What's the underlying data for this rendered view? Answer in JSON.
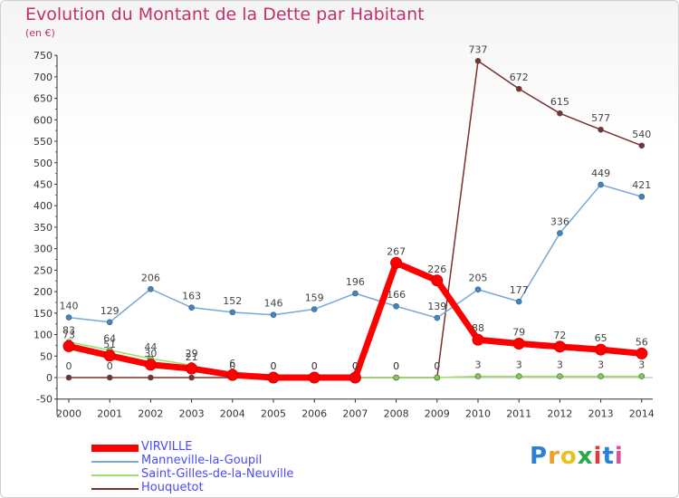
{
  "title": "Evolution du Montant de la Dette par Habitant",
  "unit": "(en €)",
  "logo": "Proxiti",
  "chart_data": {
    "type": "line",
    "title": "Evolution du Montant de la Dette par Habitant",
    "ylabel": "(en €)",
    "x": [
      "2000",
      "2001",
      "2002",
      "2003",
      "2004",
      "2005",
      "2006",
      "2007",
      "2008",
      "2009",
      "2010",
      "2011",
      "2012",
      "2013",
      "2014"
    ],
    "ylim": [
      -50,
      750
    ],
    "yticks": [
      -50,
      0,
      50,
      100,
      150,
      200,
      250,
      300,
      350,
      400,
      450,
      500,
      550,
      600,
      650,
      700,
      750
    ],
    "grid": false,
    "legend_position": "bottom-left",
    "series": [
      {
        "name": "VIRVILLE",
        "color": "#ff0000",
        "values": [
          73,
          51,
          30,
          21,
          6,
          0,
          0,
          0,
          267,
          226,
          88,
          79,
          72,
          65,
          56
        ],
        "labels": [
          "73",
          "51",
          "30",
          "21",
          "6",
          "0",
          "0",
          "0",
          "267",
          "226",
          "88",
          "79",
          "72",
          "65",
          "56"
        ]
      },
      {
        "name": "Manneville-la-Goupil",
        "color": "#7aa7d6",
        "values": [
          140,
          129,
          206,
          163,
          152,
          146,
          159,
          196,
          166,
          139,
          205,
          177,
          336,
          449,
          421
        ],
        "labels": [
          "140",
          "129",
          "206",
          "163",
          "152",
          "146",
          "159",
          "196",
          "166",
          "139",
          "205",
          "177",
          "336",
          "449",
          "421"
        ]
      },
      {
        "name": "Saint-Gilles-de-la-Neuville",
        "color": "#99e066",
        "values": [
          83,
          64,
          44,
          29,
          0,
          0,
          0,
          0,
          0,
          0,
          3,
          3,
          3,
          3,
          3
        ],
        "labels": [
          "83",
          "64",
          "44",
          "29",
          "0",
          "0",
          "0",
          "0",
          "0",
          "0",
          "3",
          "3",
          "3",
          "3",
          "3"
        ]
      },
      {
        "name": "Houquetot",
        "color": "#7a3030",
        "values": [
          0,
          0,
          0,
          0,
          0,
          0,
          0,
          0,
          0,
          0,
          737,
          672,
          615,
          577,
          540
        ],
        "labels": [
          "0",
          "0",
          "",
          "",
          "",
          "",
          "",
          "",
          "0",
          "0",
          "737",
          "672",
          "615",
          "577",
          "540"
        ]
      }
    ]
  }
}
